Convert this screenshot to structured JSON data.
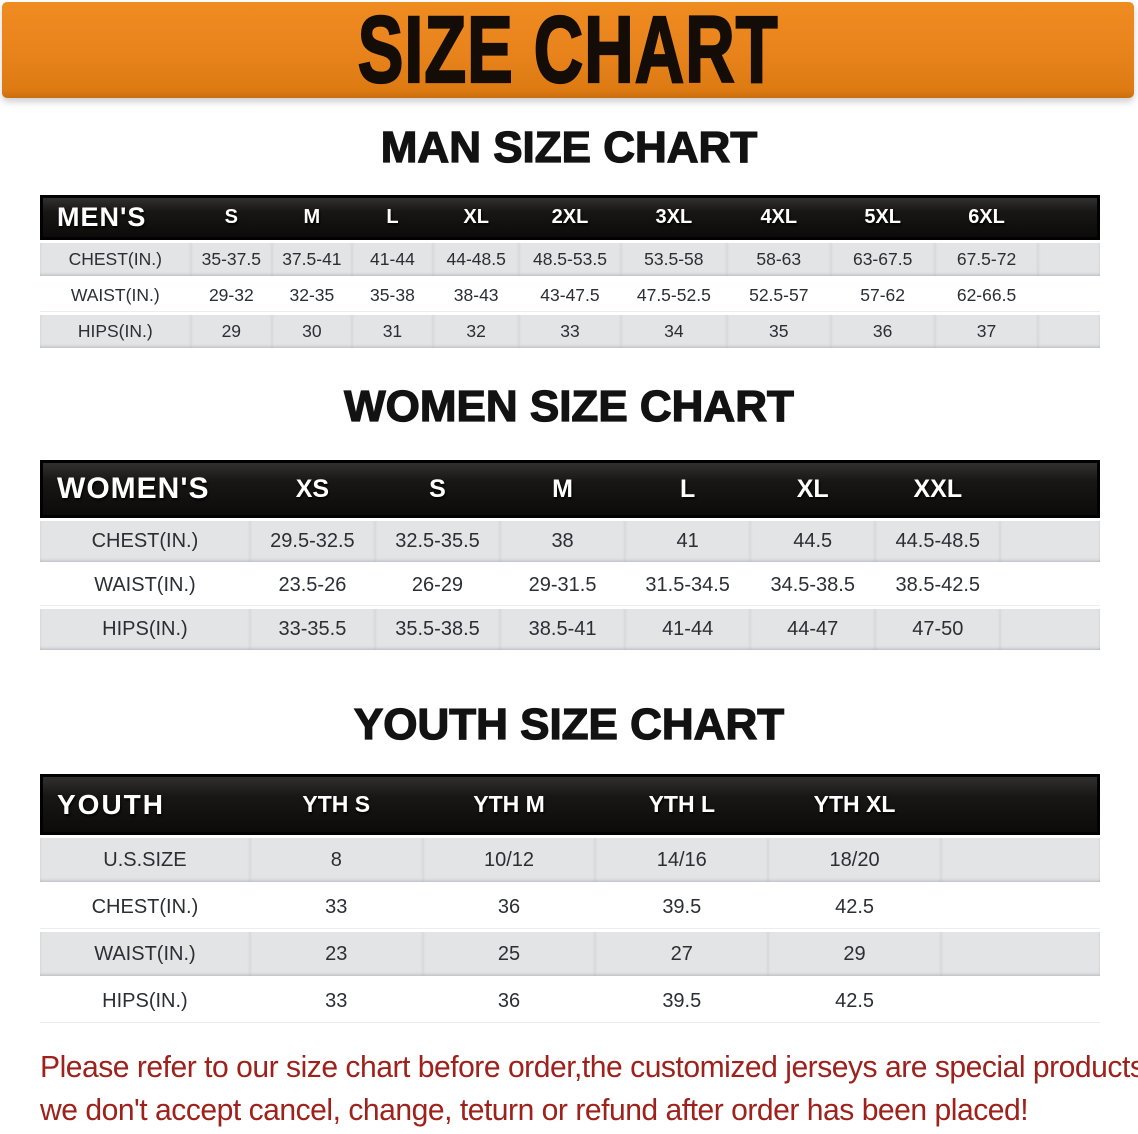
{
  "banner": {
    "title": "SIZE CHART",
    "bg_color": "#e8831c",
    "text_color": "#140d07"
  },
  "colors": {
    "header_band": "#141311",
    "row_shade": "#e2e4e6",
    "row_plain": "#ffffff",
    "disclaimer_red": "#9e211c"
  },
  "sections": {
    "men": {
      "heading": "MAN SIZE CHART",
      "header_label": "MEN'S",
      "sizes": [
        "S",
        "M",
        "L",
        "XL",
        "2XL",
        "3XL",
        "4XL",
        "5XL",
        "6XL"
      ],
      "rows": [
        {
          "label": "CHEST(IN.)",
          "values": [
            "35-37.5",
            "37.5-41",
            "41-44",
            "44-48.5",
            "48.5-53.5",
            "53.5-58",
            "58-63",
            "63-67.5",
            "67.5-72"
          ]
        },
        {
          "label": "WAIST(IN.)",
          "values": [
            "29-32",
            "32-35",
            "35-38",
            "38-43",
            "43-47.5",
            "47.5-52.5",
            "52.5-57",
            "57-62",
            "62-66.5"
          ]
        },
        {
          "label": "HIPS(IN.)",
          "values": [
            "29",
            "30",
            "31",
            "32",
            "33",
            "34",
            "35",
            "36",
            "37"
          ]
        }
      ]
    },
    "women": {
      "heading": "WOMEN SIZE CHART",
      "header_label": "WOMEN'S",
      "sizes": [
        "XS",
        "S",
        "M",
        "L",
        "XL",
        "XXL"
      ],
      "rows": [
        {
          "label": "CHEST(IN.)",
          "values": [
            "29.5-32.5",
            "32.5-35.5",
            "38",
            "41",
            "44.5",
            "44.5-48.5"
          ]
        },
        {
          "label": "WAIST(IN.)",
          "values": [
            "23.5-26",
            "26-29",
            "29-31.5",
            "31.5-34.5",
            "34.5-38.5",
            "38.5-42.5"
          ]
        },
        {
          "label": "HIPS(IN.)",
          "values": [
            "33-35.5",
            "35.5-38.5",
            "38.5-41",
            "41-44",
            "44-47",
            "47-50"
          ]
        }
      ]
    },
    "youth": {
      "heading": "YOUTH SIZE CHART",
      "header_label": "YOUTH",
      "sizes": [
        "YTH S",
        "YTH M",
        "YTH L",
        "YTH XL"
      ],
      "rows": [
        {
          "label": "U.S.SIZE",
          "values": [
            "8",
            "10/12",
            "14/16",
            "18/20"
          ]
        },
        {
          "label": "CHEST(IN.)",
          "values": [
            "33",
            "36",
            "39.5",
            "42.5"
          ]
        },
        {
          "label": "WAIST(IN.)",
          "values": [
            "23",
            "25",
            "27",
            "29"
          ]
        },
        {
          "label": "HIPS(IN.)",
          "values": [
            "33",
            "36",
            "39.5",
            "42.5"
          ]
        }
      ]
    }
  },
  "disclaimer": {
    "line1": "Please refer to our size chart before order,the customized jerseys are special products,",
    "line2": "we don't accept cancel, change, teturn or refund after order has been placed!"
  }
}
